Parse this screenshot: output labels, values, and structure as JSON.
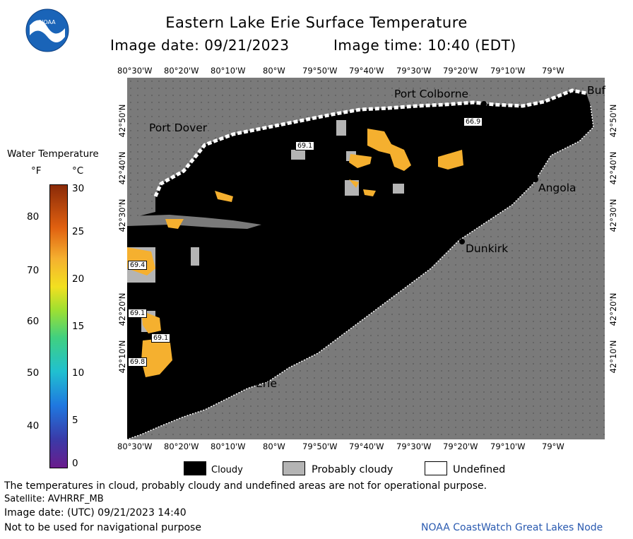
{
  "header": {
    "title": "Eastern Lake Erie Surface Temperature",
    "image_date_label": "Image date: 09/21/2023",
    "image_time_label": "Image time: 10:40 (EDT)",
    "logo_text": "NOAA"
  },
  "axes": {
    "lon_ticks": [
      "80°30'W",
      "80°20'W",
      "80°10'W",
      "80°W",
      "79°50'W",
      "79°40'W",
      "79°30'W",
      "79°20'W",
      "79°10'W",
      "79°W"
    ],
    "lat_ticks": [
      "42°50'N",
      "42°40'N",
      "42°30'N",
      "42°20'N",
      "42°10'N"
    ]
  },
  "colorbar": {
    "title": "Water Temperature",
    "unit_f": "°F",
    "unit_c": "°C",
    "f_ticks": [
      "80",
      "70",
      "60",
      "50",
      "40"
    ],
    "c_ticks": [
      "30",
      "25",
      "20",
      "15",
      "10",
      "5",
      "0"
    ]
  },
  "places": {
    "port_dover": "Port Dover",
    "port_colborne": "Port Colborne",
    "buffalo": "Buf",
    "angola": "Angola",
    "dunkirk": "Dunkirk",
    "erie": "Erie"
  },
  "temps": [
    "66.9",
    "69.1",
    "69.4",
    "69.1",
    "69.1",
    "69.8"
  ],
  "legend": {
    "cloudy": "Cloudy",
    "probably_cloudy": "Probably cloudy",
    "undefined": "Undefined"
  },
  "footer": {
    "disclaimer": "The temperatures in cloud, probably cloudy and undefined areas are not for operational purpose.",
    "satellite": "Satellite: AVHRRF_MB",
    "utc_date": "Image date: (UTC) 09/21/2023  14:40",
    "nav_note": "Not to be used for navigational purpose",
    "credit": "NOAA CoastWatch Great Lakes Node"
  },
  "colors": {
    "land": "#7a7a7a",
    "cloudy": "#000000",
    "probably_cloudy": "#b4b4b4",
    "warm_water": "#f5b02f",
    "credit": "#2a5ab0"
  }
}
